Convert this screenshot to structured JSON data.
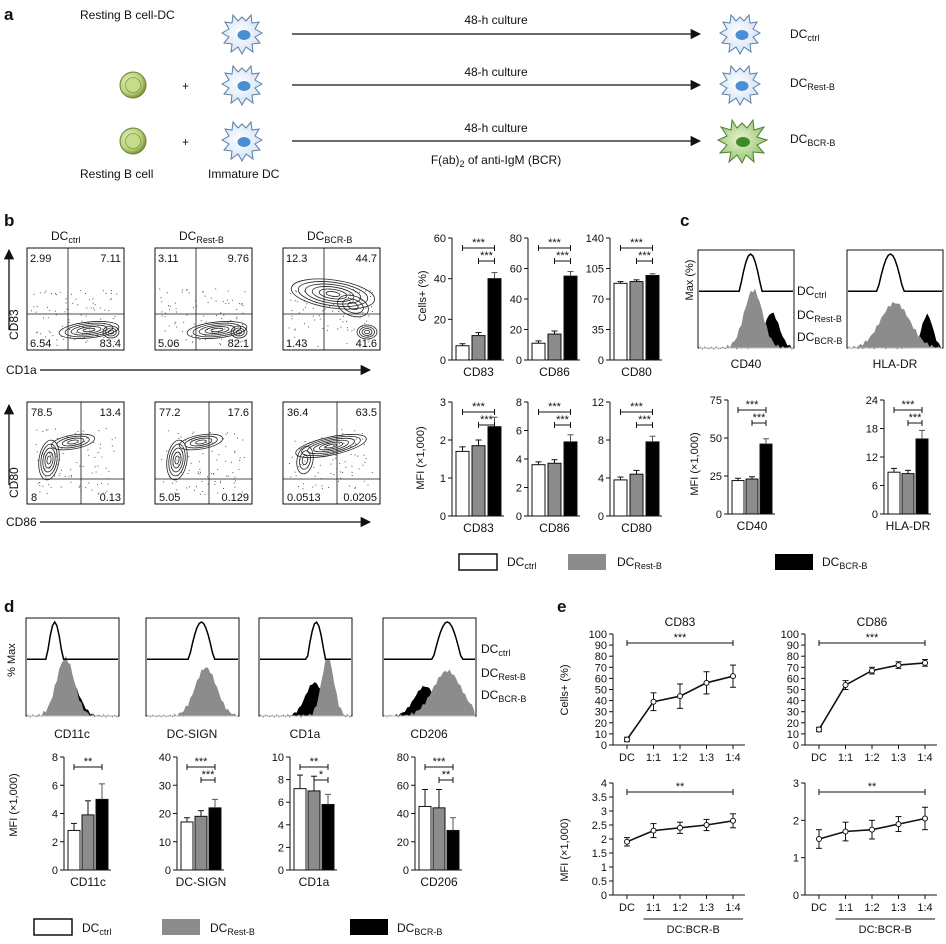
{
  "panel_letters": [
    "a",
    "b",
    "c",
    "d",
    "e"
  ],
  "legend": {
    "ctrl": "DC",
    "ctrl_sub": "ctrl",
    "rest": "DC",
    "rest_sub": "Rest-B",
    "bcr": "DC",
    "bcr_sub": "BCR-B"
  },
  "panel_a": {
    "header": "Resting B cell-DC",
    "culture": "48-h culture",
    "plus": "+",
    "treatment": "F(ab)",
    "treatment_sub": "2",
    "treatment_tail": " of anti-IgM (BCR)",
    "b_cell_label": "Resting B cell",
    "dc_label": "Immature DC"
  },
  "panel_b_flow": {
    "top_y_axis": "CD83",
    "top_x_axis": "CD1a",
    "bottom_y_axis": "CD80",
    "bottom_x_axis": "CD86",
    "plots_top": [
      {
        "title": "DC",
        "sub": "ctrl",
        "q": [
          "2.99",
          "7.11",
          "6.54",
          "83.4"
        ]
      },
      {
        "title": "DC",
        "sub": "Rest-B",
        "q": [
          "3.11",
          "9.76",
          "5.06",
          "82.1"
        ]
      },
      {
        "title": "DC",
        "sub": "BCR-B",
        "q": [
          "12.3",
          "44.7",
          "1.43",
          "41.6"
        ]
      }
    ],
    "plots_bottom": [
      {
        "q": [
          "78.5",
          "13.4",
          "8",
          "0.13"
        ]
      },
      {
        "q": [
          "77.2",
          "17.6",
          "5.05",
          "0.129"
        ]
      },
      {
        "q": [
          "36.4",
          "63.5",
          "0.0513",
          "0.0205"
        ]
      }
    ]
  },
  "panel_b_bars": {
    "top_ylabel": "Cells+ (%)",
    "bottom_ylabel": "MFI (×1,000)",
    "sig": "***"
  },
  "panel_c": {
    "ylabel": "Max (%)",
    "mfi_ylabel": "MFI (×1,000)",
    "sig": "***"
  },
  "panel_d": {
    "ylabel": "% Max",
    "mfi_ylabel": "MFI (×1,000)"
  },
  "panel_e": {
    "top_ylabel": "Cells+ (%)",
    "bottom_ylabel": "MFI (×1,000)",
    "xlabel": "DC:BCR-B",
    "sig_top": "***",
    "sig_bottom": "**"
  },
  "chart_data": [
    {
      "id": "b-cd83-pct",
      "type": "bar",
      "xlabel": "CD83",
      "ylim": [
        0,
        60
      ],
      "ticks": [
        0,
        20,
        40,
        60
      ],
      "values": [
        7,
        12,
        40
      ],
      "errors": [
        1,
        1.5,
        3
      ],
      "sig": [
        {
          "from": 0,
          "to": 2,
          "label": "***"
        },
        {
          "from": 1,
          "to": 2,
          "label": "***"
        }
      ]
    },
    {
      "id": "b-cd86-pct",
      "type": "bar",
      "xlabel": "CD86",
      "ylim": [
        0,
        80
      ],
      "ticks": [
        0,
        20,
        40,
        60,
        80
      ],
      "values": [
        11,
        17,
        55
      ],
      "errors": [
        1.5,
        2,
        3
      ],
      "sig": [
        {
          "from": 0,
          "to": 2,
          "label": "***"
        },
        {
          "from": 1,
          "to": 2,
          "label": "***"
        }
      ]
    },
    {
      "id": "b-cd80-pct",
      "type": "bar",
      "xlabel": "CD80",
      "ylim": [
        0,
        140
      ],
      "ticks": [
        0,
        35,
        70,
        105,
        140
      ],
      "values": [
        88,
        90,
        97
      ],
      "errors": [
        2,
        2,
        2
      ],
      "sig": [
        {
          "from": 0,
          "to": 2,
          "label": "***"
        },
        {
          "from": 1,
          "to": 2,
          "label": "***"
        }
      ]
    },
    {
      "id": "b-cd83-mfi",
      "type": "bar",
      "xlabel": "CD83",
      "ylim": [
        0,
        3
      ],
      "ticks": [
        0,
        1,
        2,
        3
      ],
      "values": [
        1.7,
        1.85,
        2.35
      ],
      "errors": [
        0.12,
        0.15,
        0.25
      ],
      "sig": [
        {
          "from": 0,
          "to": 2,
          "label": "***"
        },
        {
          "from": 1,
          "to": 2,
          "label": "***"
        }
      ]
    },
    {
      "id": "b-cd86-mfi",
      "type": "bar",
      "xlabel": "CD86",
      "ylim": [
        0,
        8
      ],
      "ticks": [
        0,
        2,
        4,
        6,
        8
      ],
      "values": [
        3.6,
        3.7,
        5.2
      ],
      "errors": [
        0.2,
        0.25,
        0.5
      ],
      "sig": [
        {
          "from": 0,
          "to": 2,
          "label": "***"
        },
        {
          "from": 1,
          "to": 2,
          "label": "***"
        }
      ]
    },
    {
      "id": "b-cd80-mfi",
      "type": "bar",
      "xlabel": "CD80",
      "ylim": [
        0,
        12
      ],
      "ticks": [
        0,
        4,
        8,
        12
      ],
      "values": [
        3.8,
        4.4,
        7.8
      ],
      "errors": [
        0.3,
        0.4,
        0.6
      ],
      "sig": [
        {
          "from": 0,
          "to": 2,
          "label": "***"
        },
        {
          "from": 1,
          "to": 2,
          "label": "***"
        }
      ]
    },
    {
      "id": "c-cd40-mfi",
      "type": "bar",
      "xlabel": "CD40",
      "ylim": [
        0,
        75
      ],
      "ticks": [
        0,
        25,
        50,
        75
      ],
      "values": [
        22,
        23,
        46
      ],
      "errors": [
        1.5,
        1.5,
        3.5
      ],
      "sig": [
        {
          "from": 0,
          "to": 2,
          "label": "***"
        },
        {
          "from": 1,
          "to": 2,
          "label": "***"
        }
      ]
    },
    {
      "id": "c-hladr-mfi",
      "type": "bar",
      "xlabel": "HLA-DR",
      "ylim": [
        0,
        24
      ],
      "ticks": [
        0,
        6,
        12,
        18,
        24
      ],
      "values": [
        8.8,
        8.5,
        15.8
      ],
      "errors": [
        0.8,
        0.7,
        1.8
      ],
      "sig": [
        {
          "from": 0,
          "to": 2,
          "label": "***"
        },
        {
          "from": 1,
          "to": 2,
          "label": "***"
        }
      ]
    },
    {
      "id": "d-cd11c-mfi",
      "type": "bar",
      "xlabel": "CD11c",
      "ylim": [
        0,
        8
      ],
      "ticks": [
        0,
        2,
        4,
        6,
        8
      ],
      "values": [
        2.8,
        3.9,
        5.0
      ],
      "errors": [
        0.5,
        1.0,
        1.1
      ],
      "sig": [
        {
          "from": 0,
          "to": 2,
          "label": "**"
        }
      ]
    },
    {
      "id": "d-dcsign-mfi",
      "type": "bar",
      "xlabel": "DC-SIGN",
      "ylim": [
        0,
        40
      ],
      "ticks": [
        0,
        10,
        20,
        30,
        40
      ],
      "values": [
        17,
        19,
        22
      ],
      "errors": [
        1.5,
        2,
        3
      ],
      "sig": [
        {
          "from": 0,
          "to": 2,
          "label": "***"
        },
        {
          "from": 1,
          "to": 2,
          "label": "***"
        }
      ]
    },
    {
      "id": "d-cd1a-mfi",
      "type": "bar",
      "xlabel": "CD1a",
      "ylim": [
        0,
        10
      ],
      "ticks": [
        0,
        2,
        4,
        6,
        8,
        10
      ],
      "values": [
        7.2,
        7.0,
        5.8
      ],
      "errors": [
        1.2,
        1.3,
        0.9
      ],
      "sig": [
        {
          "from": 0,
          "to": 2,
          "label": "**"
        },
        {
          "from": 1,
          "to": 2,
          "label": "*"
        }
      ]
    },
    {
      "id": "d-cd206-mfi",
      "type": "bar",
      "xlabel": "CD206",
      "ylim": [
        0,
        80
      ],
      "ticks": [
        0,
        20,
        40,
        60,
        80
      ],
      "values": [
        45,
        44,
        28
      ],
      "errors": [
        12,
        13,
        9
      ],
      "sig": [
        {
          "from": 0,
          "to": 2,
          "label": "***"
        },
        {
          "from": 1,
          "to": 2,
          "label": "**"
        }
      ]
    },
    {
      "id": "e-cd83-pct",
      "type": "line",
      "title": "CD83",
      "ylabel": "Cells+ (%)",
      "x": [
        "DC",
        "1:1",
        "1:2",
        "1:3",
        "1:4"
      ],
      "values": [
        5,
        39,
        44,
        56,
        62
      ],
      "errors": [
        2,
        8,
        11,
        10,
        10
      ],
      "ylim": [
        0,
        100
      ],
      "ticks": [
        0,
        10,
        20,
        30,
        40,
        50,
        60,
        70,
        80,
        90,
        100
      ],
      "sig": "***"
    },
    {
      "id": "e-cd86-pct",
      "type": "line",
      "title": "CD86",
      "x": [
        "DC",
        "1:1",
        "1:2",
        "1:3",
        "1:4"
      ],
      "values": [
        14,
        54,
        67,
        72,
        74
      ],
      "errors": [
        2,
        4,
        3,
        3,
        3
      ],
      "ylim": [
        0,
        100
      ],
      "ticks": [
        0,
        10,
        20,
        30,
        40,
        50,
        60,
        70,
        80,
        90,
        100
      ],
      "sig": "***"
    },
    {
      "id": "e-cd83-mfi",
      "type": "line",
      "ylabel": "MFI (×1,000)",
      "xlabel": "DC:BCR-B",
      "x": [
        "DC",
        "1:1",
        "1:2",
        "1:3",
        "1:4"
      ],
      "values": [
        1.9,
        2.3,
        2.4,
        2.5,
        2.65
      ],
      "errors": [
        0.15,
        0.25,
        0.2,
        0.2,
        0.25
      ],
      "ylim": [
        0,
        4
      ],
      "ticks": [
        0,
        0.5,
        1,
        1.5,
        2,
        2.5,
        3,
        3.5,
        4
      ],
      "sig": "**"
    },
    {
      "id": "e-cd86-mfi",
      "type": "line",
      "xlabel": "DC:BCR-B",
      "x": [
        "DC",
        "1:1",
        "1:2",
        "1:3",
        "1:4"
      ],
      "values": [
        1.5,
        1.7,
        1.75,
        1.9,
        2.05
      ],
      "errors": [
        0.25,
        0.25,
        0.25,
        0.2,
        0.3
      ],
      "ylim": [
        0,
        3
      ],
      "ticks": [
        0,
        1,
        2,
        3
      ],
      "sig": "**"
    }
  ]
}
